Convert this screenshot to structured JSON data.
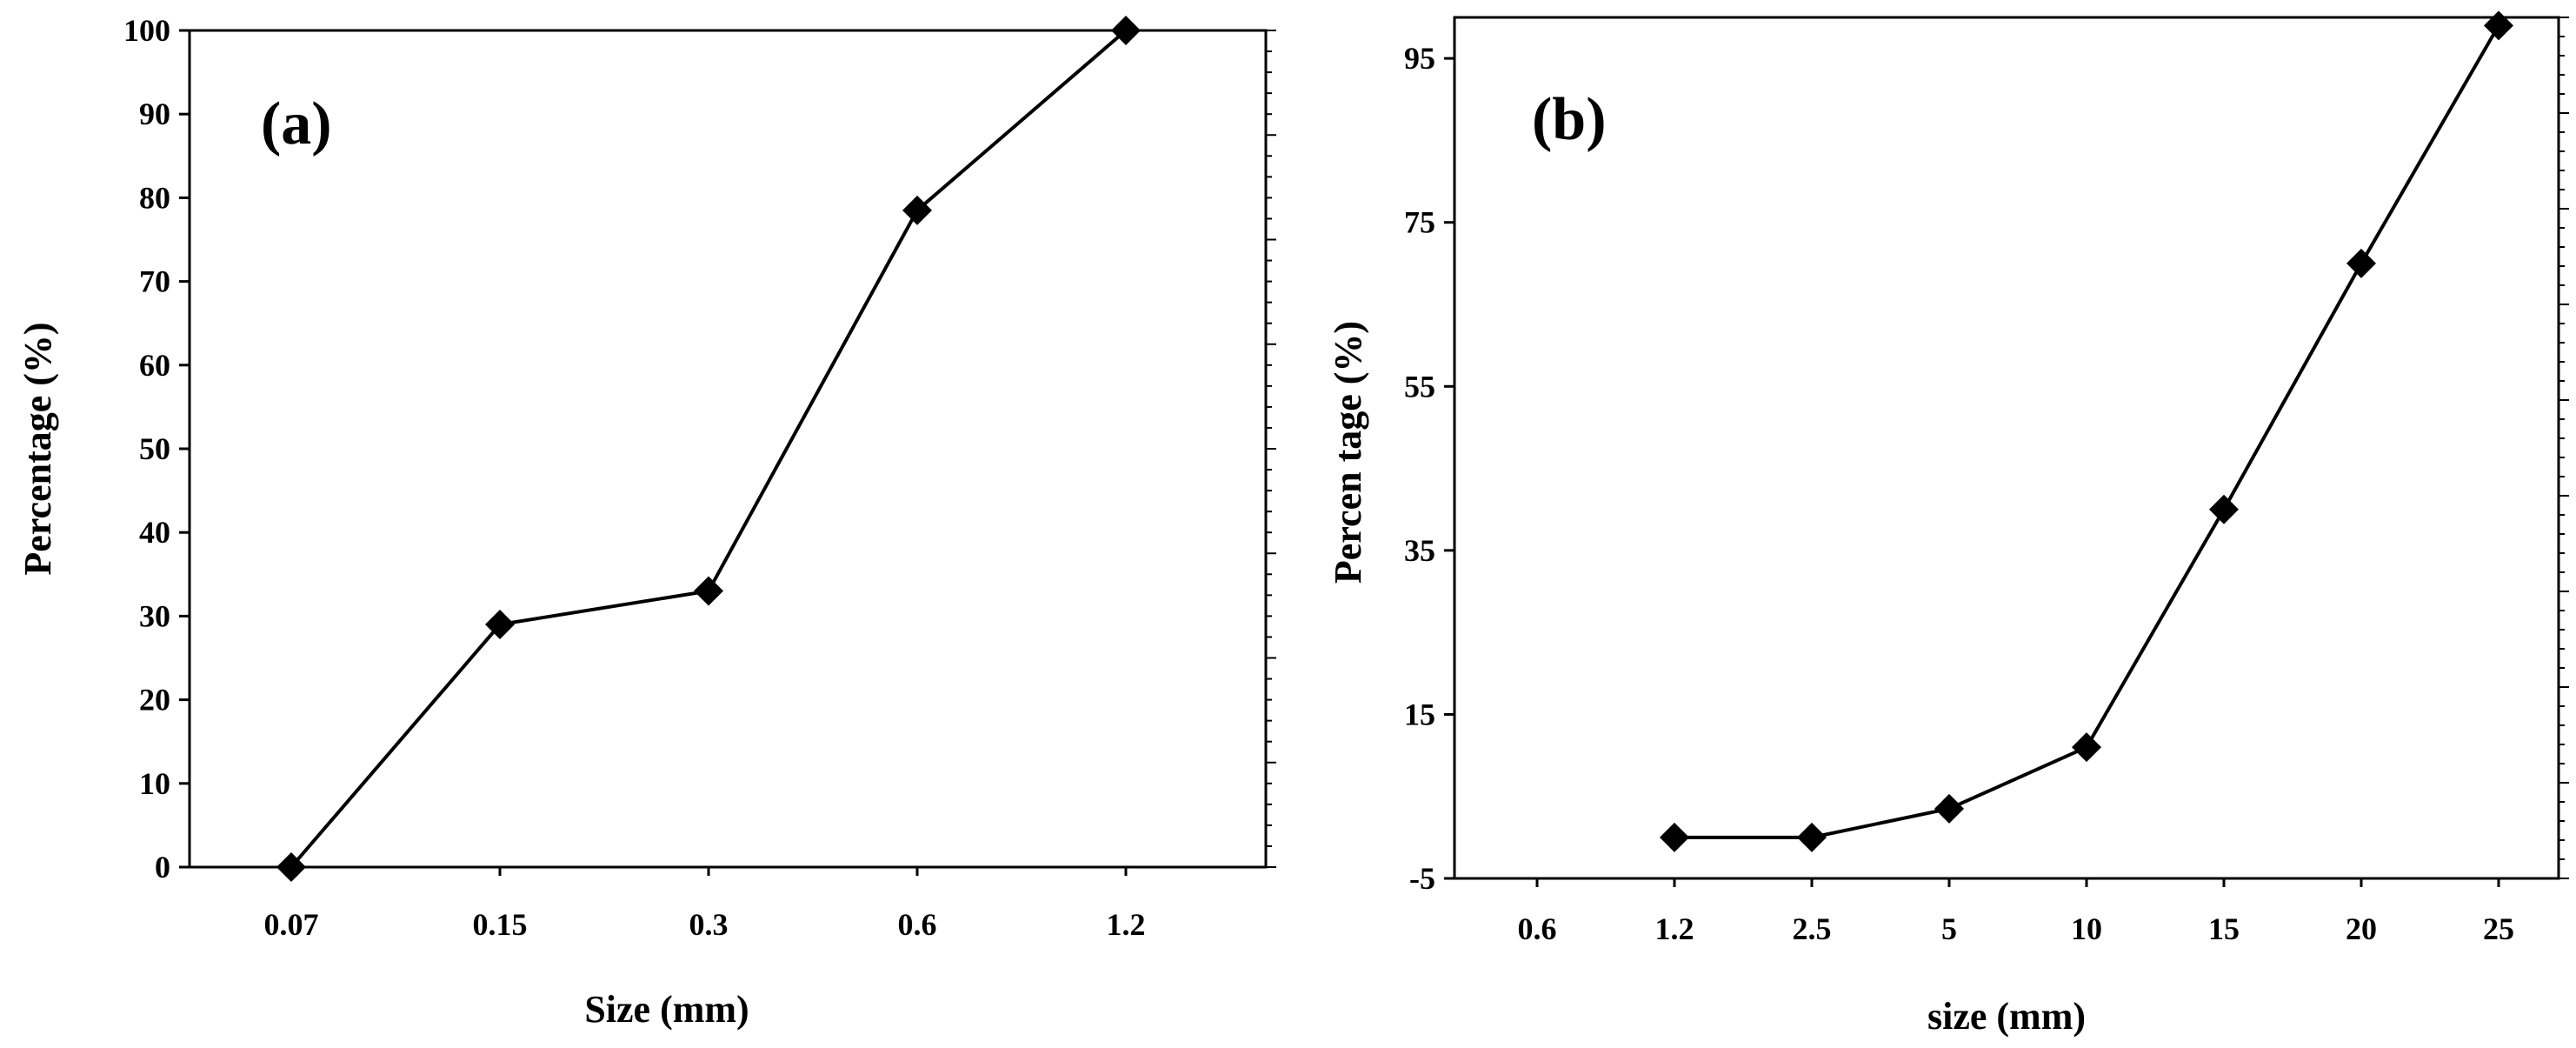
{
  "chart_data": [
    {
      "type": "line",
      "panel_label": "(a)",
      "xlabel": "Size (mm)",
      "ylabel": "Percentage (%)",
      "categories": [
        "0.07",
        "0.15",
        "0.3",
        "0.6",
        "1.2"
      ],
      "values": [
        0,
        29,
        33,
        78.5,
        100
      ],
      "ylim": [
        0,
        100
      ],
      "yticks": [
        "0",
        "10",
        "20",
        "30",
        "40",
        "50",
        "60",
        "70",
        "80",
        "90",
        "100"
      ],
      "marker": "diamond",
      "line_color": "#000000",
      "grid": false
    },
    {
      "type": "line",
      "panel_label": "(b)",
      "xlabel": "size (mm)",
      "ylabel": "Percen tage (%)",
      "categories": [
        "0.6",
        "1.2",
        "2.5",
        "5",
        "10",
        "15",
        "20",
        "25"
      ],
      "values": [
        null,
        0,
        0,
        3.5,
        11,
        40,
        70,
        99
      ],
      "ylim": [
        -5,
        100
      ],
      "yticks": [
        "-5",
        "15",
        "35",
        "55",
        "75",
        "95"
      ],
      "marker": "diamond",
      "line_color": "#000000",
      "grid": false
    }
  ]
}
